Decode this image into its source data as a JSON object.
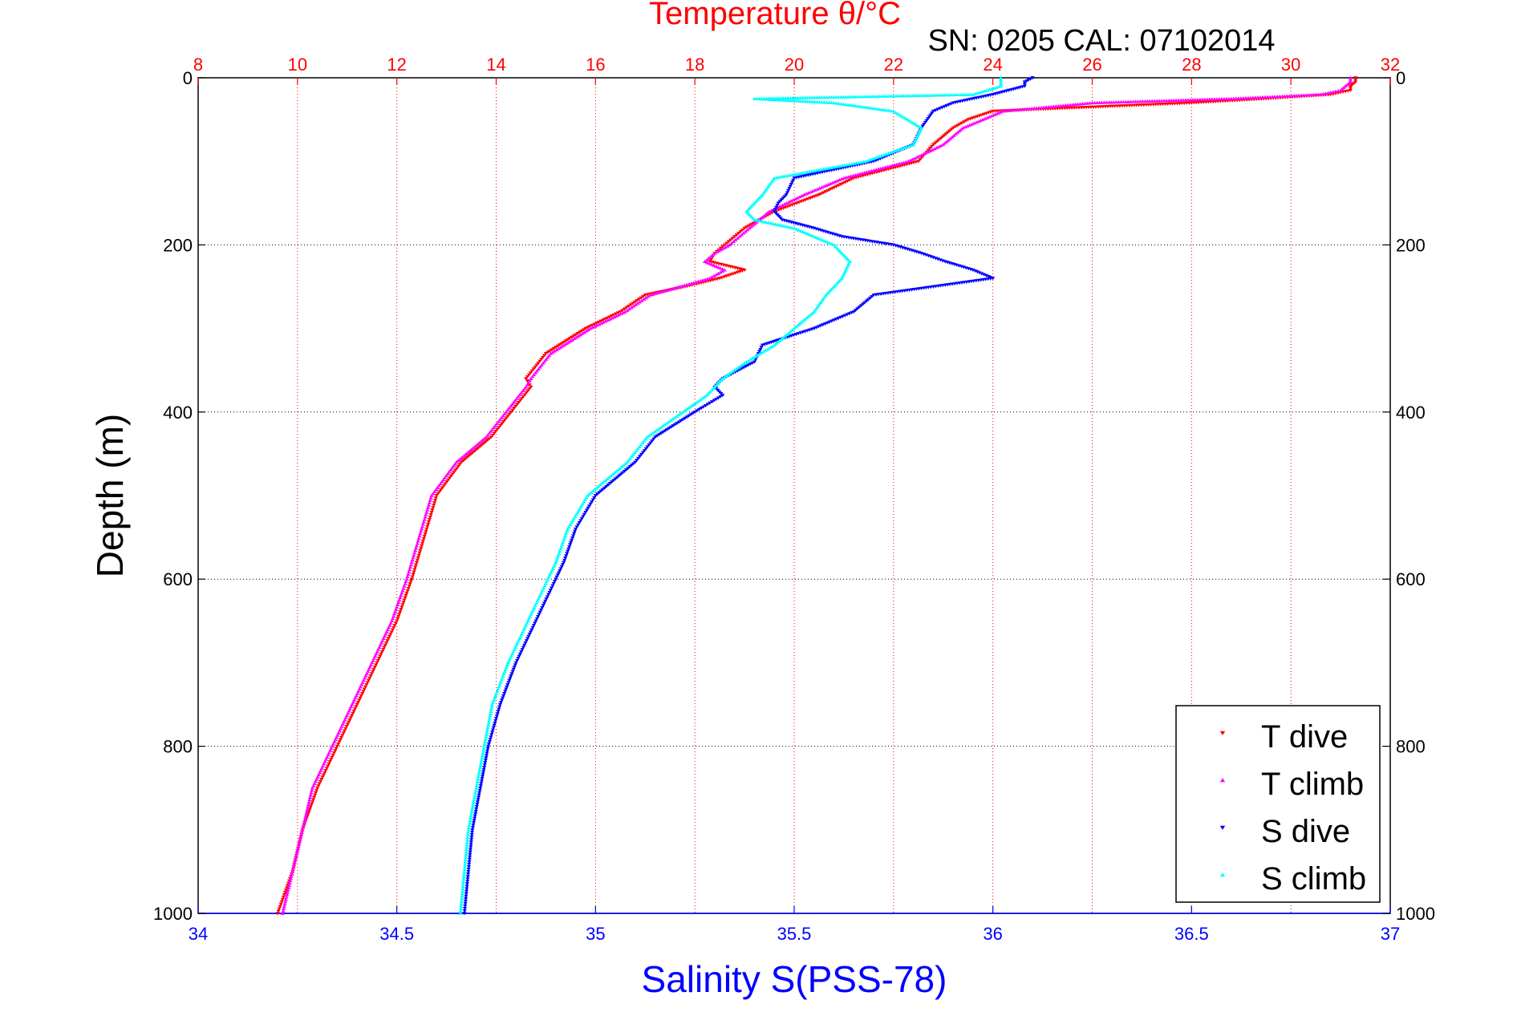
{
  "chart_data": {
    "type": "scatter",
    "title": "Temperature θ/°C",
    "subtitle": "SN: 0205  CAL: 07102014",
    "ylabel": "Depth (m)",
    "xlabel": "Salinity S(PSS-78)",
    "top_axis": {
      "label": "Temperature θ/°C",
      "range": [
        8,
        32
      ],
      "ticks": [
        "8",
        "10",
        "12",
        "14",
        "16",
        "18",
        "20",
        "22",
        "24",
        "26",
        "28",
        "30",
        "32"
      ],
      "color": "#ff0000"
    },
    "bottom_axis": {
      "label": "Salinity S(PSS-78)",
      "range": [
        34,
        37
      ],
      "ticks": [
        "34",
        "34.5",
        "35",
        "35.5",
        "36",
        "36.5",
        "37"
      ],
      "color": "#0000ff"
    },
    "y_axis": {
      "label": "Depth (m)",
      "range": [
        0,
        1000
      ],
      "reversed": true,
      "ticks": [
        "0",
        "200",
        "400",
        "600",
        "800",
        "1000"
      ]
    },
    "grid": true,
    "legend_position": "bottom-right",
    "legend": [
      {
        "name": "T dive",
        "color": "#ff0000",
        "marker": "triangle-down"
      },
      {
        "name": "T climb",
        "color": "#ff00ff",
        "marker": "triangle-up"
      },
      {
        "name": "S dive",
        "color": "#0000ff",
        "marker": "triangle-down"
      },
      {
        "name": "S climb",
        "color": "#00ffff",
        "marker": "triangle-up"
      }
    ],
    "series": [
      {
        "name": "T dive",
        "axis": "top",
        "color": "#ff0000",
        "marker": "triangle-down",
        "depth": [
          0,
          5,
          10,
          15,
          20,
          25,
          30,
          40,
          50,
          60,
          80,
          100,
          120,
          140,
          160,
          180,
          190,
          200,
          210,
          220,
          230,
          240,
          250,
          260,
          280,
          300,
          330,
          360,
          370,
          400,
          430,
          460,
          500,
          540,
          580,
          600,
          650,
          700,
          750,
          800,
          850,
          900,
          950,
          1000
        ],
        "values": [
          31.3,
          31.3,
          31.2,
          31.2,
          30.8,
          29.5,
          28.0,
          24.0,
          23.5,
          23.2,
          22.8,
          22.5,
          21.2,
          20.5,
          19.6,
          19.0,
          18.8,
          18.6,
          18.4,
          18.3,
          19.0,
          18.5,
          17.8,
          17.0,
          16.5,
          15.8,
          15.0,
          14.6,
          14.7,
          14.3,
          13.9,
          13.3,
          12.8,
          12.6,
          12.4,
          12.3,
          12.0,
          11.6,
          11.2,
          10.8,
          10.4,
          10.1,
          9.9,
          9.6
        ]
      },
      {
        "name": "T climb",
        "axis": "top",
        "color": "#ff00ff",
        "marker": "triangle-up",
        "depth": [
          0,
          5,
          10,
          15,
          20,
          25,
          30,
          40,
          50,
          60,
          80,
          100,
          120,
          140,
          160,
          180,
          190,
          200,
          210,
          220,
          230,
          240,
          250,
          260,
          280,
          300,
          330,
          360,
          370,
          400,
          430,
          460,
          500,
          540,
          580,
          600,
          650,
          700,
          750,
          800,
          850,
          900,
          950,
          1000
        ],
        "values": [
          31.2,
          31.2,
          31.1,
          31.0,
          30.6,
          28.8,
          26.0,
          24.2,
          23.8,
          23.4,
          23.0,
          22.3,
          21.0,
          20.2,
          19.5,
          19.1,
          18.9,
          18.7,
          18.4,
          18.2,
          18.6,
          18.3,
          17.7,
          17.1,
          16.6,
          15.9,
          15.1,
          14.7,
          14.6,
          14.2,
          13.8,
          13.2,
          12.7,
          12.5,
          12.3,
          12.2,
          11.9,
          11.5,
          11.1,
          10.7,
          10.3,
          10.1,
          9.9,
          9.7
        ]
      },
      {
        "name": "S dive",
        "axis": "bottom",
        "color": "#0000ff",
        "marker": "triangle-down",
        "depth": [
          0,
          5,
          10,
          20,
          30,
          40,
          60,
          80,
          100,
          120,
          140,
          150,
          160,
          170,
          180,
          190,
          200,
          210,
          220,
          230,
          240,
          260,
          280,
          300,
          320,
          340,
          360,
          370,
          380,
          400,
          430,
          460,
          500,
          540,
          580,
          600,
          650,
          700,
          750,
          800,
          850,
          900,
          950,
          1000
        ],
        "values": [
          36.1,
          36.08,
          36.08,
          36.0,
          35.9,
          35.85,
          35.82,
          35.8,
          35.7,
          35.5,
          35.48,
          35.46,
          35.45,
          35.47,
          35.55,
          35.62,
          35.75,
          35.82,
          35.88,
          35.95,
          36.0,
          35.7,
          35.65,
          35.55,
          35.42,
          35.4,
          35.32,
          35.3,
          35.32,
          35.25,
          35.15,
          35.1,
          35.0,
          34.95,
          34.92,
          34.9,
          34.85,
          34.8,
          34.76,
          34.73,
          34.71,
          34.69,
          34.68,
          34.67
        ]
      },
      {
        "name": "S climb",
        "axis": "bottom",
        "color": "#00ffff",
        "marker": "triangle-up",
        "depth": [
          0,
          5,
          10,
          20,
          25,
          30,
          40,
          60,
          80,
          100,
          120,
          140,
          150,
          160,
          170,
          180,
          190,
          200,
          210,
          220,
          240,
          260,
          280,
          300,
          320,
          340,
          360,
          380,
          400,
          430,
          460,
          500,
          540,
          580,
          600,
          650,
          700,
          750,
          800,
          850,
          900,
          950,
          1000
        ],
        "values": [
          36.02,
          36.02,
          36.02,
          35.95,
          35.4,
          35.6,
          35.75,
          35.82,
          35.8,
          35.68,
          35.45,
          35.42,
          35.4,
          35.38,
          35.4,
          35.5,
          35.55,
          35.6,
          35.62,
          35.64,
          35.62,
          35.58,
          35.55,
          35.5,
          35.45,
          35.38,
          35.32,
          35.28,
          35.22,
          35.13,
          35.08,
          34.98,
          34.93,
          34.9,
          34.88,
          34.83,
          34.78,
          34.74,
          34.72,
          34.7,
          34.68,
          34.67,
          34.66
        ]
      }
    ]
  }
}
